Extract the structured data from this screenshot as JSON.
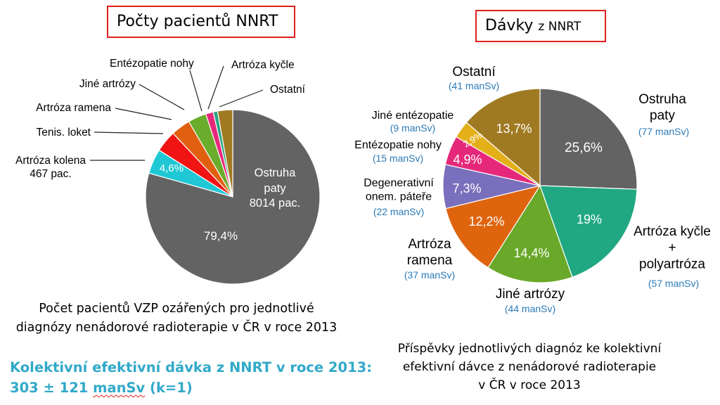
{
  "titles": {
    "left": "Počty pacientů NNRT",
    "right_main": "Dávky",
    "right_small": "z NNRT"
  },
  "captions": {
    "left_line1": "Počet pacientů VZP ozářených pro jednotlivé",
    "left_line2": "diagnózy nenádorové radioterapie v ČR v roce 2013",
    "right_line1": "Příspěvky jednotlivých diagnóz ke kolektivní",
    "right_line2": "efektivní dávce z nenádorové radioterapie",
    "right_line3": "v ČR v roce 2013"
  },
  "total": {
    "line1": "Kolektivní efektivní dávka z NNRT v roce 2013:",
    "line2_value": "303 ± 121",
    "line2_unit": "manSv",
    "line2_suffix": "(k=1)"
  },
  "chart_data": [
    {
      "type": "pie",
      "title": "Počty pacientů NNRT",
      "slices": [
        {
          "label": "Ostruha paty",
          "percent": 79.4,
          "value_text": "8014 pac.",
          "pct_text": "79,4%",
          "color": "#636363"
        },
        {
          "label": "Artróza kolena",
          "percent": 4.6,
          "value_text": "467 pac.",
          "pct_text": "4,6%",
          "color": "#1fc8d4"
        },
        {
          "label": "Tenis. loket",
          "percent": 4.0,
          "value_text": "",
          "pct_text": "",
          "color": "#f01414"
        },
        {
          "label": "Artróza ramena",
          "percent": 3.6,
          "value_text": "",
          "pct_text": "",
          "color": "#e06010"
        },
        {
          "label": "Jiné artrózy",
          "percent": 3.4,
          "value_text": "",
          "pct_text": "",
          "color": "#6aac2c"
        },
        {
          "label": "Entézopatie nohy",
          "percent": 1.4,
          "value_text": "",
          "pct_text": "",
          "color": "#e6287a"
        },
        {
          "label": "Artróza kyčle",
          "percent": 0.8,
          "value_text": "",
          "pct_text": "",
          "color": "#2aa383"
        },
        {
          "label": "Ostatní",
          "percent": 2.8,
          "value_text": "",
          "pct_text": "",
          "color": "#a07a22"
        }
      ]
    },
    {
      "type": "pie",
      "title": "Dávky z NNRT",
      "slices": [
        {
          "label": "Ostruha paty",
          "percent": 25.6,
          "value": 77,
          "value_text": "(77 manSv)",
          "pct_text": "25,6%",
          "color": "#636363"
        },
        {
          "label": "Artróza kyčle + polyartróza",
          "percent": 19.0,
          "value": 57,
          "value_text": "(57 manSv)",
          "pct_text": "19%",
          "color": "#20a882"
        },
        {
          "label": "Jiné artrózy",
          "percent": 14.4,
          "value": 44,
          "value_text": "(44 manSv)",
          "pct_text": "14,4%",
          "color": "#69a828"
        },
        {
          "label": "Artróza ramena",
          "percent": 12.2,
          "value": 37,
          "value_text": "(37 manSv)",
          "pct_text": "12,2%",
          "color": "#df640e"
        },
        {
          "label": "Degenerativní onem. páteře",
          "percent": 7.3,
          "value": 22,
          "value_text": "(22 manSv)",
          "pct_text": "7,3%",
          "color": "#7a6fbc"
        },
        {
          "label": "Entézopatie nohy",
          "percent": 4.9,
          "value": 15,
          "value_text": "(15 manSv)",
          "pct_text": "4,9%",
          "color": "#e6287a"
        },
        {
          "label": "Jiné entézopatie",
          "percent": 2.9,
          "value": 9,
          "value_text": "(9 manSv)",
          "pct_text": "2,9%",
          "color": "#e3b01a"
        },
        {
          "label": "Ostatní",
          "percent": 13.7,
          "value": 41,
          "value_text": "(41 manSv)",
          "pct_text": "13,7%",
          "color": "#a07a22"
        }
      ]
    }
  ]
}
